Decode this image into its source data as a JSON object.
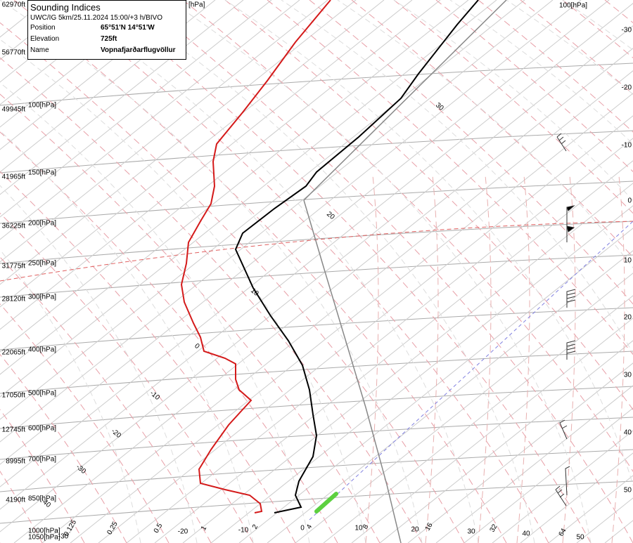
{
  "info_box": {
    "title": "Sounding Indices",
    "run": "UWC/IG 5km/25.11.2024 15:00/+3 h/BIVO",
    "rows": [
      [
        "Position",
        "65°51'N 14°51'W"
      ],
      [
        "Elevation",
        "725ft"
      ],
      [
        "Name",
        "Vopnafjarðarflugvöllur"
      ]
    ]
  },
  "altitude_labels": [
    "62970ft",
    "56770ft",
    "49945ft",
    "41965ft",
    "36225ft",
    "31775ft",
    "28120ft",
    "22065ft",
    "17050ft",
    "12745ft",
    "8995ft",
    "4190ft"
  ],
  "pressure_labels": [
    "[hPa]",
    "100[hPa]",
    "150[hPa]",
    "200[hPa]",
    "250[hPa]",
    "300[hPa]",
    "400[hPa]",
    "500[hPa]",
    "600[hPa]",
    "700[hPa]",
    "850[hPa]",
    "1000[hPa]",
    "1050[hPa]"
  ],
  "top_right_label": "100[hPa]",
  "right_temp_labels": [
    "-30",
    "-20",
    "-10",
    "0",
    "10",
    "20",
    "30",
    "40",
    "50"
  ],
  "bottom_labels": [
    "-30",
    "0.125",
    "0.25",
    "0.5",
    "-20",
    "1",
    "-10",
    "2",
    "0",
    "4",
    "10",
    "8",
    "20",
    "16",
    "30",
    "32",
    "40",
    "64",
    "50"
  ],
  "isotherm_labels": [
    "30",
    "20",
    "10",
    "0",
    "-10",
    "-20",
    "-30",
    "-40"
  ]
}
